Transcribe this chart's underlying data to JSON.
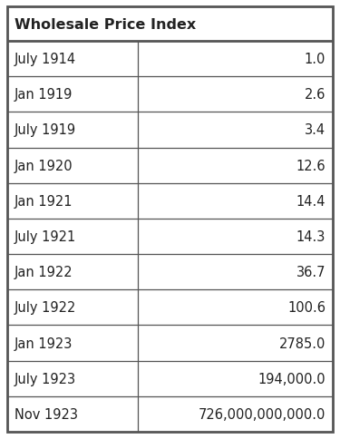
{
  "title": "Wholesale Price Index",
  "rows": [
    [
      "July 1914",
      "1.0"
    ],
    [
      "Jan 1919",
      "2.6"
    ],
    [
      "July 1919",
      "3.4"
    ],
    [
      "Jan 1920",
      "12.6"
    ],
    [
      "Jan 1921",
      "14.4"
    ],
    [
      "July 1921",
      "14.3"
    ],
    [
      "Jan 1922",
      "36.7"
    ],
    [
      "July 1922",
      "100.6"
    ],
    [
      "Jan 1923",
      "2785.0"
    ],
    [
      "July 1923",
      "194,000.0"
    ],
    [
      "Nov 1923",
      "726,000,000,000.0"
    ]
  ],
  "border_color": "#555555",
  "bg_color": "#ffffff",
  "text_color": "#222222",
  "title_fontsize": 11.5,
  "cell_fontsize": 10.5,
  "outer_border_lw": 2.0,
  "inner_border_lw": 0.9,
  "col_split": 0.4,
  "fig_w": 3.75,
  "fig_h": 4.85,
  "dpi": 100
}
